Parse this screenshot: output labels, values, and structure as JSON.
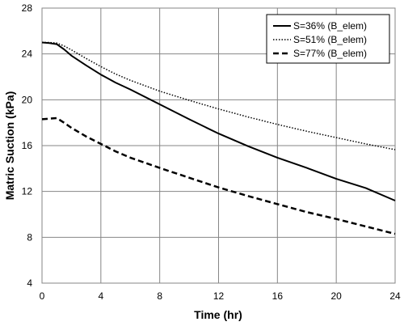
{
  "chart_data": {
    "type": "line",
    "xlabel": "Time (hr)",
    "ylabel": "Matric Suction (kPa)",
    "xlim": [
      0,
      24
    ],
    "ylim": [
      4,
      28
    ],
    "xticks": [
      0,
      4,
      8,
      12,
      16,
      20,
      24
    ],
    "yticks": [
      4,
      8,
      12,
      16,
      20,
      24,
      28
    ],
    "grid": true,
    "legend_position": "top-right",
    "series": [
      {
        "name": "S=36% (B_elem)",
        "style": "solid",
        "color": "#000000",
        "x": [
          0,
          0.5,
          1,
          1.5,
          2,
          3,
          4,
          5,
          6,
          8,
          10,
          12,
          14,
          16,
          18,
          20,
          22,
          24
        ],
        "y": [
          25.0,
          24.95,
          24.85,
          24.4,
          23.85,
          23.0,
          22.2,
          21.5,
          20.9,
          19.6,
          18.3,
          17.05,
          15.95,
          14.95,
          14.05,
          13.1,
          12.3,
          11.2
        ]
      },
      {
        "name": "S=51% (B_elem)",
        "style": "dotted",
        "color": "#000000",
        "x": [
          0,
          0.5,
          1,
          1.5,
          2,
          3,
          4,
          5,
          6,
          8,
          10,
          12,
          14,
          16,
          18,
          20,
          22,
          24
        ],
        "y": [
          25.0,
          25.0,
          24.95,
          24.7,
          24.35,
          23.6,
          22.9,
          22.25,
          21.7,
          20.75,
          19.95,
          19.2,
          18.5,
          17.85,
          17.25,
          16.7,
          16.15,
          15.65
        ]
      },
      {
        "name": "S=77% (B_elem)",
        "style": "dashed",
        "color": "#000000",
        "x": [
          0,
          0.5,
          1,
          1.5,
          2,
          3,
          4,
          5,
          6,
          8,
          10,
          12,
          14,
          16,
          18,
          20,
          22,
          24
        ],
        "y": [
          18.3,
          18.35,
          18.4,
          18.0,
          17.55,
          16.8,
          16.15,
          15.5,
          14.95,
          14.05,
          13.2,
          12.35,
          11.6,
          10.9,
          10.2,
          9.6,
          8.95,
          8.3
        ]
      }
    ]
  }
}
